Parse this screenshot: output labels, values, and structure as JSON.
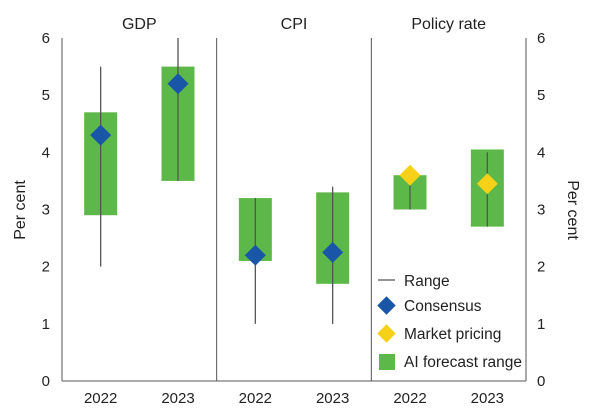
{
  "chart_data": {
    "type": "range",
    "ylabel_left": "Per cent",
    "ylabel_right": "Per cent",
    "ylim": [
      0,
      6
    ],
    "yticks": [
      0,
      1,
      2,
      3,
      4,
      5,
      6
    ],
    "panels": [
      {
        "title": "GDP",
        "categories": [
          "2022",
          "2023"
        ],
        "range": [
          [
            2.0,
            5.5
          ],
          [
            3.5,
            6.0
          ]
        ],
        "ai_forecast_range": [
          [
            2.9,
            4.7
          ],
          [
            3.5,
            5.5
          ]
        ],
        "consensus": [
          4.3,
          5.2
        ],
        "market_pricing": [
          null,
          null
        ]
      },
      {
        "title": "CPI",
        "categories": [
          "2022",
          "2023"
        ],
        "range": [
          [
            1.0,
            3.2
          ],
          [
            1.0,
            3.4
          ]
        ],
        "ai_forecast_range": [
          [
            2.1,
            3.2
          ],
          [
            1.7,
            3.3
          ]
        ],
        "consensus": [
          2.2,
          2.25
        ],
        "market_pricing": [
          null,
          null
        ]
      },
      {
        "title": "Policy rate",
        "categories": [
          "2022",
          "2023"
        ],
        "range": [
          [
            3.0,
            3.6
          ],
          [
            2.7,
            4.0
          ]
        ],
        "ai_forecast_range": [
          [
            3.0,
            3.6
          ],
          [
            2.7,
            4.05
          ]
        ],
        "consensus": [
          null,
          null
        ],
        "market_pricing": [
          3.6,
          3.45
        ]
      }
    ],
    "legend": {
      "range": "Range",
      "consensus": "Consensus",
      "market_pricing": "Market pricing",
      "ai_forecast_range": "AI forecast range"
    },
    "colors": {
      "range": "#555555",
      "consensus": "#1a56a8",
      "market_pricing": "#f7d117",
      "ai_forecast_range": "#5cb848",
      "axis": "#555555"
    }
  }
}
